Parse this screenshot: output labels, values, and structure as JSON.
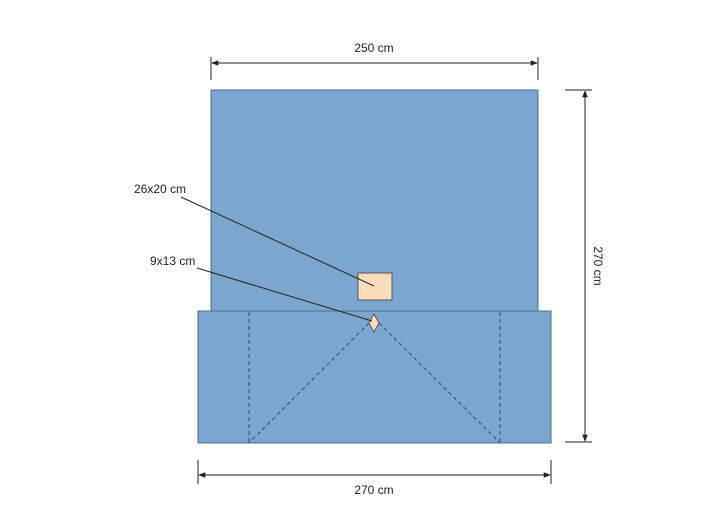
{
  "dimensions": {
    "top_width": "250 cm",
    "bottom_width": "270 cm",
    "height": "270 cm"
  },
  "callouts": {
    "patch_large": "26x20 cm",
    "fenestration": "9x13 cm"
  },
  "colors": {
    "drape": "#7ba7cf",
    "drape_edge": "#4a6f92",
    "patch": "#fbdcbc",
    "patch_edge": "#555555",
    "line": "#222222",
    "fold_line": "#2f4c6b"
  }
}
